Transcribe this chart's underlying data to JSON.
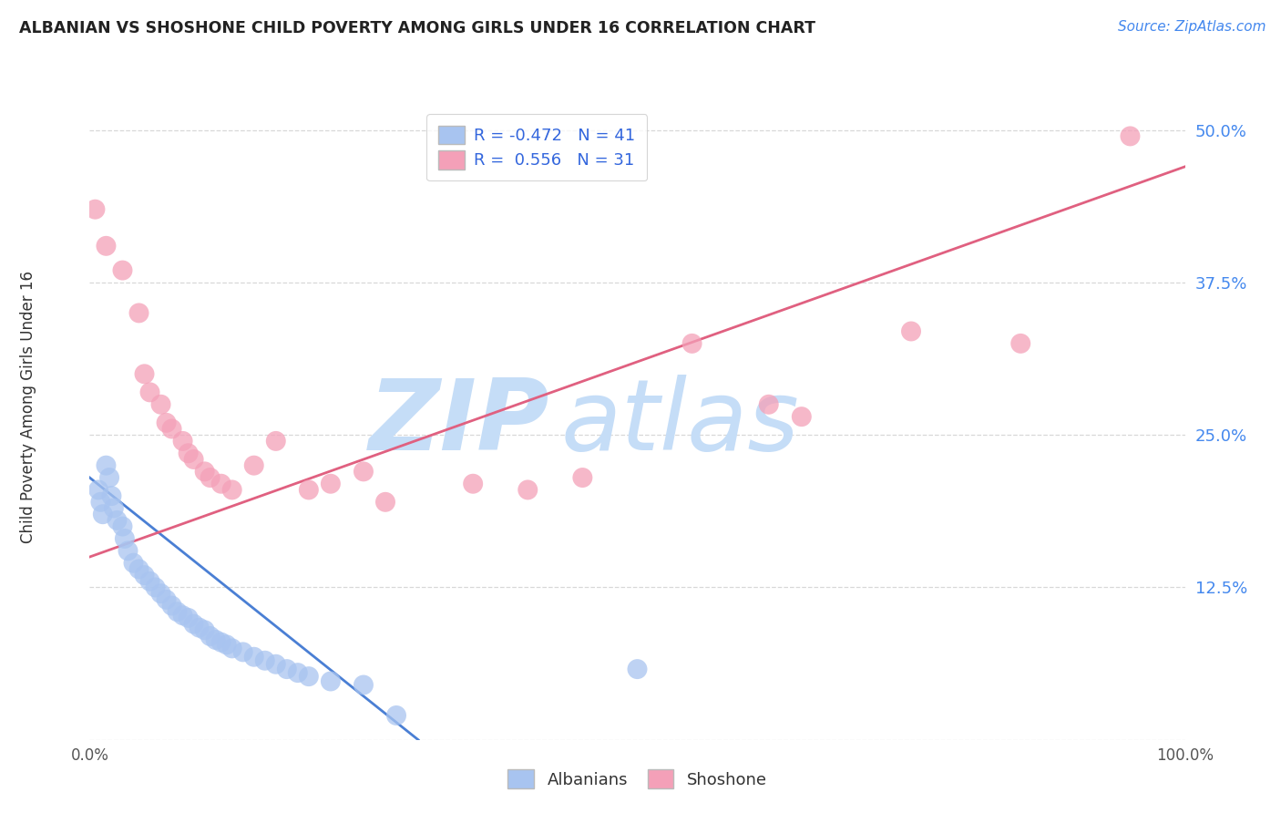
{
  "title": "ALBANIAN VS SHOSHONE CHILD POVERTY AMONG GIRLS UNDER 16 CORRELATION CHART",
  "source": "Source: ZipAtlas.com",
  "ylabel": "Child Poverty Among Girls Under 16",
  "yaxis_values": [
    0,
    12.5,
    25.0,
    37.5,
    50.0
  ],
  "xlim": [
    0,
    100
  ],
  "ylim": [
    0,
    52
  ],
  "albanian_color": "#a8c4f0",
  "shoshone_color": "#f4a0b8",
  "trend_albanian_color": "#4a7fd4",
  "trend_shoshone_color": "#e06080",
  "watermark_zip": "ZIP",
  "watermark_atlas": "atlas",
  "watermark_color": "#c5ddf7",
  "albanian_points": [
    [
      0.8,
      20.5
    ],
    [
      1.0,
      19.5
    ],
    [
      1.2,
      18.5
    ],
    [
      1.5,
      22.5
    ],
    [
      1.8,
      21.5
    ],
    [
      2.0,
      20.0
    ],
    [
      2.2,
      19.0
    ],
    [
      2.5,
      18.0
    ],
    [
      3.0,
      17.5
    ],
    [
      3.2,
      16.5
    ],
    [
      3.5,
      15.5
    ],
    [
      4.0,
      14.5
    ],
    [
      4.5,
      14.0
    ],
    [
      5.0,
      13.5
    ],
    [
      5.5,
      13.0
    ],
    [
      6.0,
      12.5
    ],
    [
      6.5,
      12.0
    ],
    [
      7.0,
      11.5
    ],
    [
      7.5,
      11.0
    ],
    [
      8.0,
      10.5
    ],
    [
      8.5,
      10.2
    ],
    [
      9.0,
      10.0
    ],
    [
      9.5,
      9.5
    ],
    [
      10.0,
      9.2
    ],
    [
      10.5,
      9.0
    ],
    [
      11.0,
      8.5
    ],
    [
      11.5,
      8.2
    ],
    [
      12.0,
      8.0
    ],
    [
      12.5,
      7.8
    ],
    [
      13.0,
      7.5
    ],
    [
      14.0,
      7.2
    ],
    [
      15.0,
      6.8
    ],
    [
      16.0,
      6.5
    ],
    [
      17.0,
      6.2
    ],
    [
      18.0,
      5.8
    ],
    [
      19.0,
      5.5
    ],
    [
      20.0,
      5.2
    ],
    [
      22.0,
      4.8
    ],
    [
      25.0,
      4.5
    ],
    [
      28.0,
      2.0
    ],
    [
      50.0,
      5.8
    ]
  ],
  "shoshone_points": [
    [
      0.5,
      43.5
    ],
    [
      1.5,
      40.5
    ],
    [
      3.0,
      38.5
    ],
    [
      4.5,
      35.0
    ],
    [
      5.0,
      30.0
    ],
    [
      5.5,
      28.5
    ],
    [
      6.5,
      27.5
    ],
    [
      7.0,
      26.0
    ],
    [
      7.5,
      25.5
    ],
    [
      8.5,
      24.5
    ],
    [
      9.0,
      23.5
    ],
    [
      9.5,
      23.0
    ],
    [
      10.5,
      22.0
    ],
    [
      11.0,
      21.5
    ],
    [
      12.0,
      21.0
    ],
    [
      13.0,
      20.5
    ],
    [
      15.0,
      22.5
    ],
    [
      17.0,
      24.5
    ],
    [
      20.0,
      20.5
    ],
    [
      22.0,
      21.0
    ],
    [
      25.0,
      22.0
    ],
    [
      27.0,
      19.5
    ],
    [
      35.0,
      21.0
    ],
    [
      40.0,
      20.5
    ],
    [
      45.0,
      21.5
    ],
    [
      55.0,
      32.5
    ],
    [
      62.0,
      27.5
    ],
    [
      65.0,
      26.5
    ],
    [
      75.0,
      33.5
    ],
    [
      85.0,
      32.5
    ],
    [
      95.0,
      49.5
    ]
  ],
  "albanian_trend_x": [
    0,
    30
  ],
  "albanian_trend_y": [
    21.5,
    0.0
  ],
  "shoshone_trend_x": [
    0,
    100
  ],
  "shoshone_trend_y": [
    15.0,
    47.0
  ],
  "grid_color": "#d8d8d8",
  "background_color": "#ffffff",
  "legend1_label": "R = -0.472   N = 41",
  "legend2_label": "R =  0.556   N = 31"
}
